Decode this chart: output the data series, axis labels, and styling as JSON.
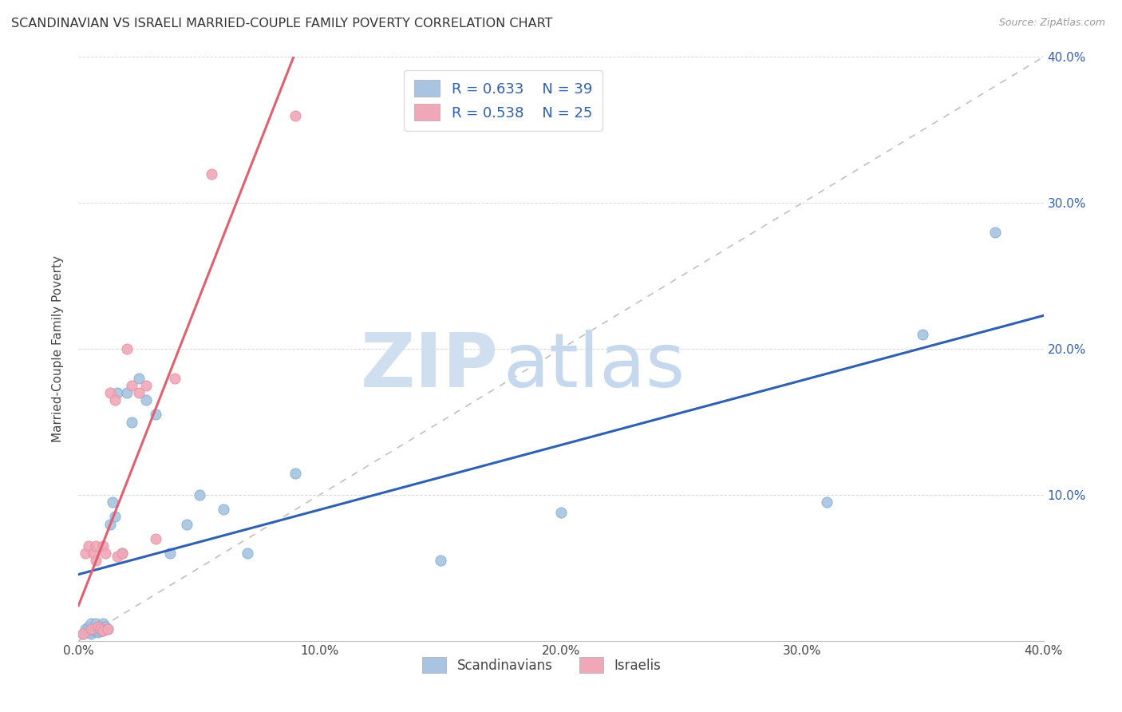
{
  "title": "SCANDINAVIAN VS ISRAELI MARRIED-COUPLE FAMILY POVERTY CORRELATION CHART",
  "source": "Source: ZipAtlas.com",
  "ylabel": "Married-Couple Family Poverty",
  "xlim": [
    0.0,
    0.4
  ],
  "ylim": [
    0.0,
    0.4
  ],
  "xticks": [
    0.0,
    0.1,
    0.2,
    0.3,
    0.4
  ],
  "yticks": [
    0.0,
    0.1,
    0.2,
    0.3,
    0.4
  ],
  "xticklabels": [
    "0.0%",
    "10.0%",
    "20.0%",
    "30.0%",
    "40.0%"
  ],
  "yticklabels_right": [
    "",
    "10.0%",
    "20.0%",
    "30.0%",
    "40.0%"
  ],
  "scandinavians_x": [
    0.002,
    0.003,
    0.004,
    0.004,
    0.005,
    0.005,
    0.006,
    0.006,
    0.007,
    0.007,
    0.008,
    0.008,
    0.009,
    0.009,
    0.01,
    0.01,
    0.011,
    0.012,
    0.013,
    0.014,
    0.015,
    0.016,
    0.018,
    0.02,
    0.022,
    0.025,
    0.028,
    0.032,
    0.038,
    0.045,
    0.05,
    0.06,
    0.07,
    0.09,
    0.15,
    0.2,
    0.31,
    0.35,
    0.38
  ],
  "scandinavians_y": [
    0.005,
    0.008,
    0.006,
    0.01,
    0.005,
    0.012,
    0.007,
    0.008,
    0.009,
    0.012,
    0.006,
    0.007,
    0.008,
    0.01,
    0.007,
    0.012,
    0.01,
    0.008,
    0.08,
    0.095,
    0.085,
    0.17,
    0.06,
    0.17,
    0.15,
    0.18,
    0.165,
    0.155,
    0.06,
    0.08,
    0.1,
    0.09,
    0.06,
    0.115,
    0.055,
    0.088,
    0.095,
    0.21,
    0.28
  ],
  "israelis_x": [
    0.002,
    0.003,
    0.004,
    0.005,
    0.006,
    0.007,
    0.007,
    0.008,
    0.009,
    0.01,
    0.01,
    0.011,
    0.012,
    0.013,
    0.015,
    0.016,
    0.018,
    0.02,
    0.022,
    0.025,
    0.028,
    0.032,
    0.04,
    0.055,
    0.09
  ],
  "israelis_y": [
    0.005,
    0.06,
    0.065,
    0.008,
    0.06,
    0.055,
    0.065,
    0.01,
    0.008,
    0.065,
    0.007,
    0.06,
    0.008,
    0.17,
    0.165,
    0.058,
    0.06,
    0.2,
    0.175,
    0.17,
    0.175,
    0.07,
    0.18,
    0.32,
    0.36
  ],
  "scandinavian_color": "#a8c4e0",
  "israeli_color": "#f0a8b8",
  "scandinavian_scatter_edge": "#7aa8d0",
  "israeli_scatter_edge": "#e888a0",
  "scandinavian_trend_color": "#3060b0",
  "israeli_trend_color": "#e06070",
  "diagonal_color": "#c0c0c0",
  "R_scandinavian": 0.633,
  "N_scandinavian": 39,
  "R_israeli": 0.538,
  "N_israeli": 25,
  "background_color": "#ffffff",
  "grid_color": "#d8d8d8",
  "right_tick_color": "#3060b0"
}
